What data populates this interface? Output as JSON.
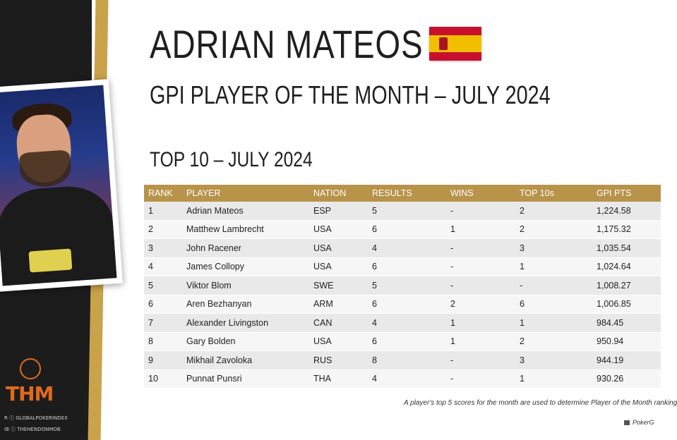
{
  "header": {
    "player_name": "ADRIAN MATEOS",
    "subtitle": "GPI PLAYER OF THE MONTH – JULY 2024",
    "flag_colors": [
      "#c8102e",
      "#f1bf00"
    ]
  },
  "section_title": "TOP 10 – JULY 2024",
  "table": {
    "columns": [
      "RANK",
      "PLAYER",
      "NATION",
      "RESULTS",
      "WINS",
      "TOP 10s",
      "GPI PTS"
    ],
    "rows": [
      [
        "1",
        "Adrian Mateos",
        "ESP",
        "5",
        "-",
        "2",
        "1,224.58"
      ],
      [
        "2",
        "Matthew Lambrecht",
        "USA",
        "6",
        "1",
        "2",
        "1,175.32"
      ],
      [
        "3",
        "John Racener",
        "USA",
        "4",
        "-",
        "3",
        "1,035.54"
      ],
      [
        "4",
        "James Collopy",
        "USA",
        "6",
        "-",
        "1",
        "1,024.64"
      ],
      [
        "5",
        "Viktor Blom",
        "SWE",
        "5",
        "-",
        "-",
        "1,008.27"
      ],
      [
        "6",
        "Aren Bezhanyan",
        "ARM",
        "6",
        "2",
        "6",
        "1,006.85"
      ],
      [
        "7",
        "Alexander Livingston",
        "CAN",
        "4",
        "1",
        "1",
        "984.45"
      ],
      [
        "8",
        "Gary Bolden",
        "USA",
        "6",
        "1",
        "2",
        "950.94"
      ],
      [
        "9",
        "Mikhail Zavoloka",
        "RUS",
        "8",
        "-",
        "3",
        "944.19"
      ],
      [
        "10",
        "Punnat Punsri",
        "THA",
        "4",
        "-",
        "1",
        "930.26"
      ]
    ]
  },
  "footnote": "A player's top 5 scores for the month are used to determine Player of the Month ranking",
  "credit": "PokerG",
  "logo": {
    "text": "THM"
  },
  "social": {
    "line1": "R  ⓘ GLOBALPOKERINDEX",
    "line2": "IB  ⓘ THEHENDONMOB"
  },
  "colors": {
    "gold": "#b8934a",
    "dark": "#1c1c1c",
    "orange": "#e06a1a"
  }
}
